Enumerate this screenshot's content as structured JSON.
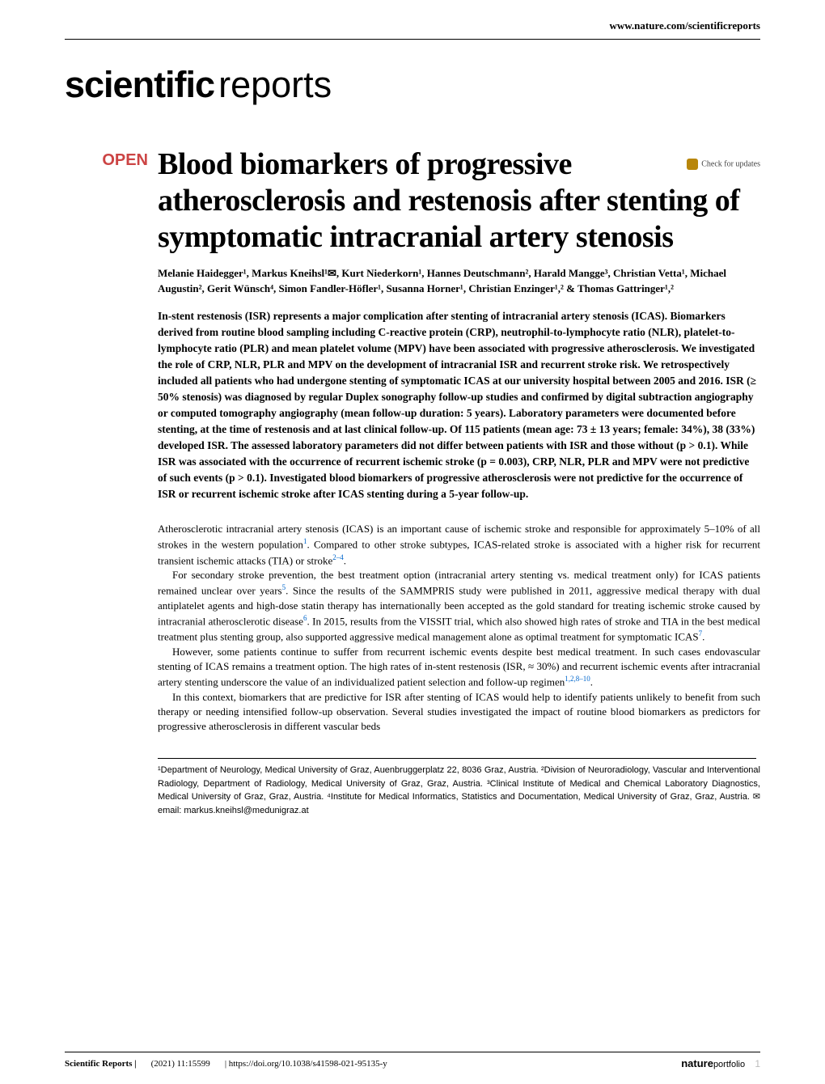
{
  "header": {
    "url": "www.nature.com/scientificreports",
    "journal_text1": "scientific",
    "journal_text2": "reports",
    "check_updates": "Check for updates",
    "open_label": "OPEN"
  },
  "title": "Blood biomarkers of progressive atherosclerosis and restenosis after stenting of symptomatic intracranial artery stenosis",
  "authors": "Melanie Haidegger¹, Markus Kneihsl¹✉, Kurt Niederkorn¹, Hannes Deutschmann², Harald Mangge³, Christian Vetta¹, Michael Augustin², Gerit Wünsch⁴, Simon Fandler-Höfler¹, Susanna Horner¹, Christian Enzinger¹,² & Thomas Gattringer¹,²",
  "abstract": "In-stent restenosis (ISR) represents a major complication after stenting of intracranial artery stenosis (ICAS). Biomarkers derived from routine blood sampling including C-reactive protein (CRP), neutrophil-to-lymphocyte ratio (NLR), platelet-to-lymphocyte ratio (PLR) and mean platelet volume (MPV) have been associated with progressive atherosclerosis. We investigated the role of CRP, NLR, PLR and MPV on the development of intracranial ISR and recurrent stroke risk. We retrospectively included all patients who had undergone stenting of symptomatic ICAS at our university hospital between 2005 and 2016. ISR (≥ 50% stenosis) was diagnosed by regular Duplex sonography follow-up studies and confirmed by digital subtraction angiography or computed tomography angiography (mean follow-up duration: 5 years). Laboratory parameters were documented before stenting, at the time of restenosis and at last clinical follow-up. Of 115 patients (mean age: 73 ± 13 years; female: 34%), 38 (33%) developed ISR. The assessed laboratory parameters did not differ between patients with ISR and those without (p > 0.1). While ISR was associated with the occurrence of recurrent ischemic stroke (p = 0.003), CRP, NLR, PLR and MPV were not predictive of such events (p > 0.1). Investigated blood biomarkers of progressive atherosclerosis were not predictive for the occurrence of ISR or recurrent ischemic stroke after ICAS stenting during a 5-year follow-up.",
  "body": {
    "p1": "Atherosclerotic intracranial artery stenosis (ICAS) is an important cause of ischemic stroke and responsible for approximately 5–10% of all strokes in the western population",
    "p1r1": "1",
    "p1b": ". Compared to other stroke subtypes, ICAS-related stroke is associated with a higher risk for recurrent transient ischemic attacks (TIA) or stroke",
    "p1r2": "2–4",
    "p1c": ".",
    "p2": "For secondary stroke prevention, the best treatment option (intracranial artery stenting vs. medical treatment only) for ICAS patients remained unclear over years",
    "p2r1": "5",
    "p2b": ". Since the results of the SAMMPRIS study were published in 2011, aggressive medical therapy with dual antiplatelet agents and high-dose statin therapy has internationally been accepted as the gold standard for treating ischemic stroke caused by intracranial atherosclerotic disease",
    "p2r2": "6",
    "p2c": ". In 2015, results from the VISSIT trial, which also showed high rates of stroke and TIA in the best medical treatment plus stenting group, also supported aggressive medical management alone as optimal treatment for symptomatic ICAS",
    "p2r3": "7",
    "p2d": ".",
    "p3": "However, some patients continue to suffer from recurrent ischemic events despite best medical treatment. In such cases endovascular stenting of ICAS remains a treatment option. The high rates of in-stent restenosis (ISR, ≈ 30%) and recurrent ischemic events after intracranial artery stenting underscore the value of an individualized patient selection and follow-up regimen",
    "p3r1": "1,2,8–10",
    "p3b": ".",
    "p4": "In this context, biomarkers that are predictive for ISR after stenting of ICAS would help to identify patients unlikely to benefit from such therapy or needing intensified follow-up observation. Several studies investigated the impact of routine blood biomarkers as predictors for progressive atherosclerosis in different vascular beds"
  },
  "affiliations": "¹Department of Neurology, Medical University of Graz, Auenbruggerplatz 22, 8036 Graz, Austria. ²Division of Neuroradiology, Vascular and Interventional Radiology, Department of Radiology, Medical University of Graz, Graz, Austria. ³Clinical Institute of Medical and Chemical Laboratory Diagnostics, Medical University of Graz, Graz, Austria. ⁴Institute for Medical Informatics, Statistics and Documentation, Medical University of Graz, Graz, Austria. ✉email: markus.kneihsl@medunigraz.at",
  "footer": {
    "journal": "Scientific Reports |",
    "citation": "(2021) 11:15599",
    "doi": "| https://doi.org/10.1038/s41598-021-95135-y",
    "brand1": "nature",
    "brand2": "portfolio",
    "page": "1"
  }
}
